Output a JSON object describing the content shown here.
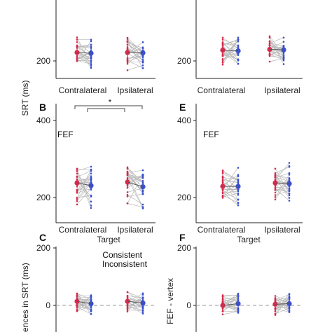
{
  "colors": {
    "consistent": "#d62a4e",
    "inconsistent": "#3a4fd0",
    "connector": "#b8b8b8",
    "axis": "#222222"
  },
  "figure": {
    "x_label_bottom": "Target",
    "legend": {
      "consistent": "Consistent",
      "inconsistent": "Inconsistent"
    },
    "significance": "*"
  },
  "chart_data": [
    {
      "id": "A",
      "type": "scatter",
      "panel_label": "",
      "region_label": "",
      "y_tick_labels": [
        "200"
      ],
      "ylabel": "SRT (ms)",
      "categories": [
        "Contralateral",
        "Ipsilateral"
      ],
      "ylim": [
        160,
        440
      ],
      "yticks": [
        200
      ],
      "series": [
        {
          "name": "Consistent",
          "means": [
            222,
            222
          ]
        },
        {
          "name": "Inconsistent",
          "means": [
            220,
            221
          ]
        }
      ]
    },
    {
      "id": "D",
      "type": "scatter",
      "panel_label": "",
      "region_label": "",
      "y_tick_labels": [
        "200"
      ],
      "categories": [
        "Contralateral",
        "Ipsilateral"
      ],
      "ylim": [
        160,
        440
      ],
      "yticks": [
        200
      ],
      "series": [
        {
          "name": "Consistent",
          "means": [
            228,
            230
          ]
        },
        {
          "name": "Inconsistent",
          "means": [
            226,
            229
          ]
        }
      ]
    },
    {
      "id": "B",
      "type": "scatter",
      "panel_label": "B",
      "region_label": "FEF",
      "y_tick_labels": [
        "400",
        "200"
      ],
      "ylabel": "SRT (ms)",
      "categories": [
        "Contralateral",
        "Ipsilateral"
      ],
      "ylim": [
        160,
        440
      ],
      "yticks": [
        400,
        200
      ],
      "series": [
        {
          "name": "Consistent",
          "means": [
            238,
            240
          ]
        },
        {
          "name": "Inconsistent",
          "means": [
            231,
            228
          ]
        }
      ]
    },
    {
      "id": "E",
      "type": "scatter",
      "panel_label": "E",
      "region_label": "FEF",
      "y_tick_labels": [
        "400",
        "200"
      ],
      "categories": [
        "Contralateral",
        "Ipsilateral"
      ],
      "ylim": [
        160,
        440
      ],
      "yticks": [
        400,
        200
      ],
      "series": [
        {
          "name": "Consistent",
          "means": [
            229,
            238
          ]
        },
        {
          "name": "Inconsistent",
          "means": [
            229,
            236
          ]
        }
      ]
    },
    {
      "id": "C",
      "type": "scatter",
      "panel_label": "C",
      "region_label": "",
      "y_tick_labels": [
        "200",
        "0"
      ],
      "ylabel": "erences in SRT (ms)",
      "categories": [
        "",
        ""
      ],
      "ylim": [
        -100,
        200
      ],
      "yticks": [
        200,
        0
      ],
      "series": [
        {
          "name": "Consistent",
          "means": [
            14,
            14
          ]
        },
        {
          "name": "Inconsistent",
          "means": [
            6,
            8
          ]
        }
      ]
    },
    {
      "id": "F",
      "type": "scatter",
      "panel_label": "F",
      "region_label": "",
      "y_tick_labels": [
        "200",
        "0"
      ],
      "ylabel": "FEF - vertex",
      "categories": [
        "",
        ""
      ],
      "ylim": [
        -100,
        200
      ],
      "yticks": [
        200,
        0
      ],
      "series": [
        {
          "name": "Consistent",
          "means": [
            0,
            4
          ]
        },
        {
          "name": "Inconsistent",
          "means": [
            6,
            6
          ]
        }
      ]
    }
  ]
}
